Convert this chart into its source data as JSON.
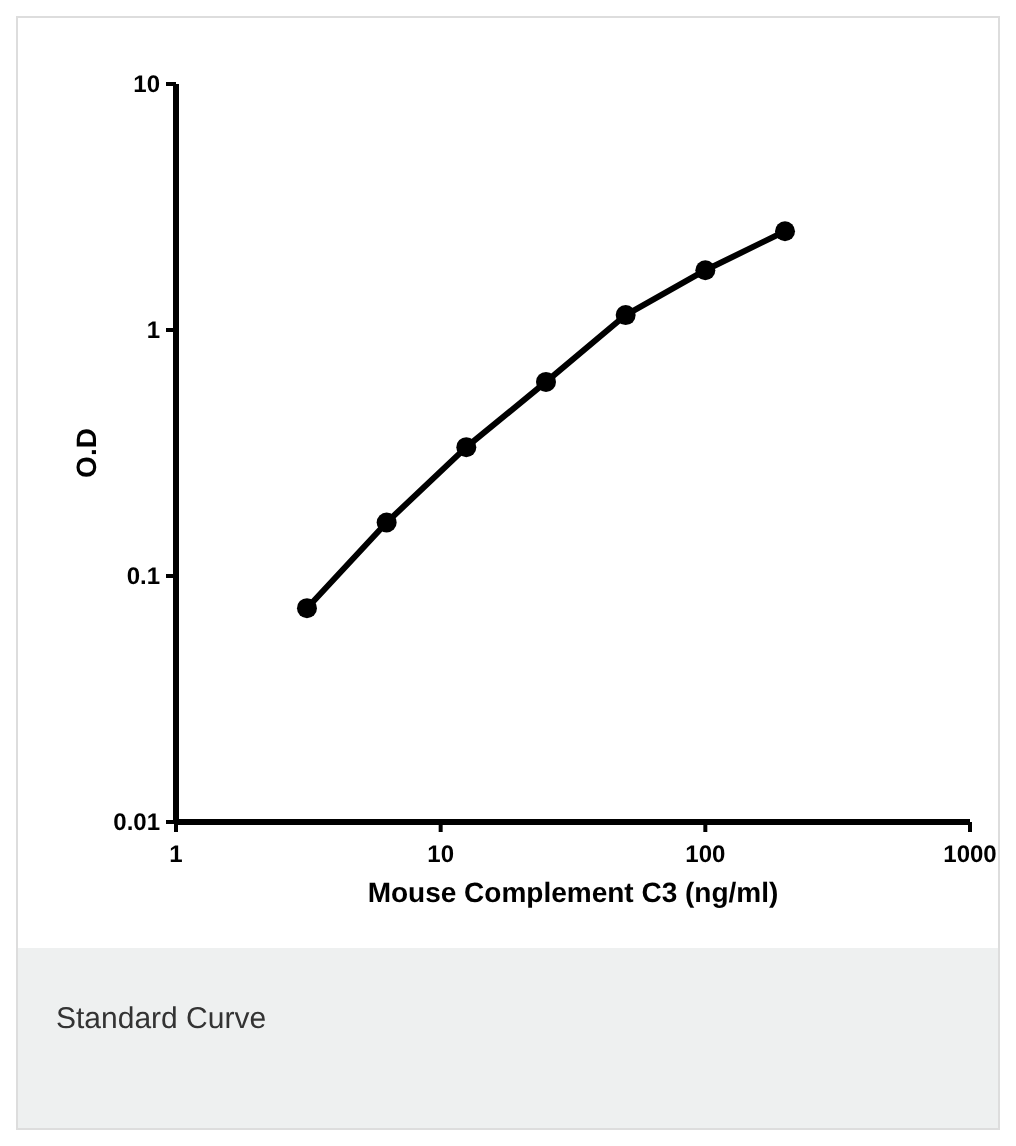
{
  "chart_data": {
    "type": "line",
    "xlabel": "Mouse Complement C3 (ng/ml)",
    "ylabel": "O.D",
    "log": "xy",
    "marker": "circle",
    "line_style": "solid",
    "x": [
      3.125,
      6.25,
      12.5,
      25,
      50,
      100,
      200
    ],
    "series": [
      {
        "color": "#000000",
        "values": [
          0.074,
          0.165,
          0.334,
          0.615,
          1.15,
          1.75,
          2.52
        ]
      }
    ],
    "xlim": [
      1,
      1000
    ],
    "xticks": [
      1,
      10,
      100,
      1000
    ],
    "ylim": [
      0.01,
      10
    ],
    "yticks": [
      0.01,
      0.1,
      1,
      10
    ],
    "annotations": [
      "Standard Curve"
    ]
  }
}
